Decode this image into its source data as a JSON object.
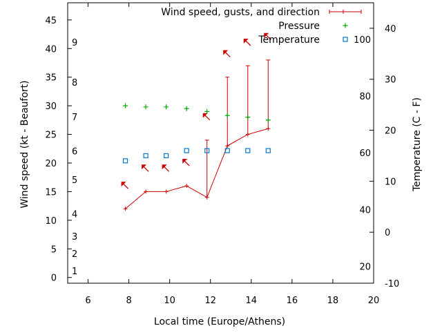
{
  "chart_data": {
    "type": "line",
    "title": "",
    "xlabel": "Local time (Europe/Athens)",
    "ylabel": "Wind speed (kt - Beaufort)",
    "y2label": "Temperature (C - F)",
    "xlim": [
      5,
      20
    ],
    "ylim": [
      -1,
      48
    ],
    "y2lim": [
      -10,
      45
    ],
    "x_ticks": [
      6,
      8,
      10,
      12,
      14,
      16,
      18,
      20
    ],
    "y_ticks": [
      0,
      5,
      10,
      15,
      20,
      25,
      30,
      35,
      40,
      45
    ],
    "y2_ticks": [
      -10,
      0,
      10,
      20,
      30,
      40
    ],
    "fahrenheit_labels": [
      {
        "label": "20",
        "celsius": -6.7
      },
      {
        "label": "40",
        "celsius": 4.4
      },
      {
        "label": "60",
        "celsius": 15.6
      },
      {
        "label": "80",
        "celsius": 26.7
      },
      {
        "label": "100",
        "celsius": 37.8
      }
    ],
    "beaufort_labels": [
      {
        "label": "1",
        "kt": 1.2
      },
      {
        "label": "2",
        "kt": 4.2
      },
      {
        "label": "3",
        "kt": 7.2
      },
      {
        "label": "4",
        "kt": 11.1
      },
      {
        "label": "5",
        "kt": 17.1
      },
      {
        "label": "6",
        "kt": 22.1
      },
      {
        "label": "7",
        "kt": 28.1
      },
      {
        "label": "8",
        "kt": 34.1
      },
      {
        "label": "9",
        "kt": 41.1
      }
    ],
    "legend_position": "top-right",
    "series": [
      {
        "name": "Wind speed, gusts, and direction",
        "color": "#cc0000",
        "points": [
          {
            "x": 7.83,
            "y": 12,
            "gust": null
          },
          {
            "x": 8.83,
            "y": 15,
            "gust": null
          },
          {
            "x": 9.83,
            "y": 15,
            "gust": null
          },
          {
            "x": 10.83,
            "y": 16,
            "gust": null
          },
          {
            "x": 11.83,
            "y": 14,
            "gust": 24
          },
          {
            "x": 12.83,
            "y": 23,
            "gust": 35
          },
          {
            "x": 13.83,
            "y": 25,
            "gust": 37
          },
          {
            "x": 14.83,
            "y": 26,
            "gust": 38
          }
        ]
      },
      {
        "name": "Pressure",
        "color": "#00aa00",
        "points": [
          {
            "x": 7.83,
            "y": 30.0
          },
          {
            "x": 8.83,
            "y": 29.8
          },
          {
            "x": 9.83,
            "y": 29.8
          },
          {
            "x": 10.83,
            "y": 29.5
          },
          {
            "x": 11.83,
            "y": 29.0
          },
          {
            "x": 12.83,
            "y": 28.3
          },
          {
            "x": 13.83,
            "y": 28.0
          },
          {
            "x": 14.83,
            "y": 27.5
          }
        ]
      },
      {
        "name": "Temperature",
        "color": "#0077cc",
        "points": [
          {
            "x": 7.83,
            "y": 14
          },
          {
            "x": 8.83,
            "y": 15
          },
          {
            "x": 9.83,
            "y": 15
          },
          {
            "x": 10.83,
            "y": 16
          },
          {
            "x": 11.83,
            "y": 16
          },
          {
            "x": 12.83,
            "y": 16
          },
          {
            "x": 13.83,
            "y": 16
          },
          {
            "x": 14.83,
            "y": 16
          }
        ]
      }
    ],
    "direction_arrows": [
      {
        "x": 7.83,
        "y": 16,
        "pointing": "north-west"
      },
      {
        "x": 8.83,
        "y": 19,
        "pointing": "north-west"
      },
      {
        "x": 9.83,
        "y": 19,
        "pointing": "north-west"
      },
      {
        "x": 10.83,
        "y": 20,
        "pointing": "north-west"
      },
      {
        "x": 11.83,
        "y": 28,
        "pointing": "north-west"
      },
      {
        "x": 12.83,
        "y": 39,
        "pointing": "north-west"
      },
      {
        "x": 13.83,
        "y": 41,
        "pointing": "north-west"
      },
      {
        "x": 14.83,
        "y": 42,
        "pointing": "north-west"
      }
    ]
  }
}
